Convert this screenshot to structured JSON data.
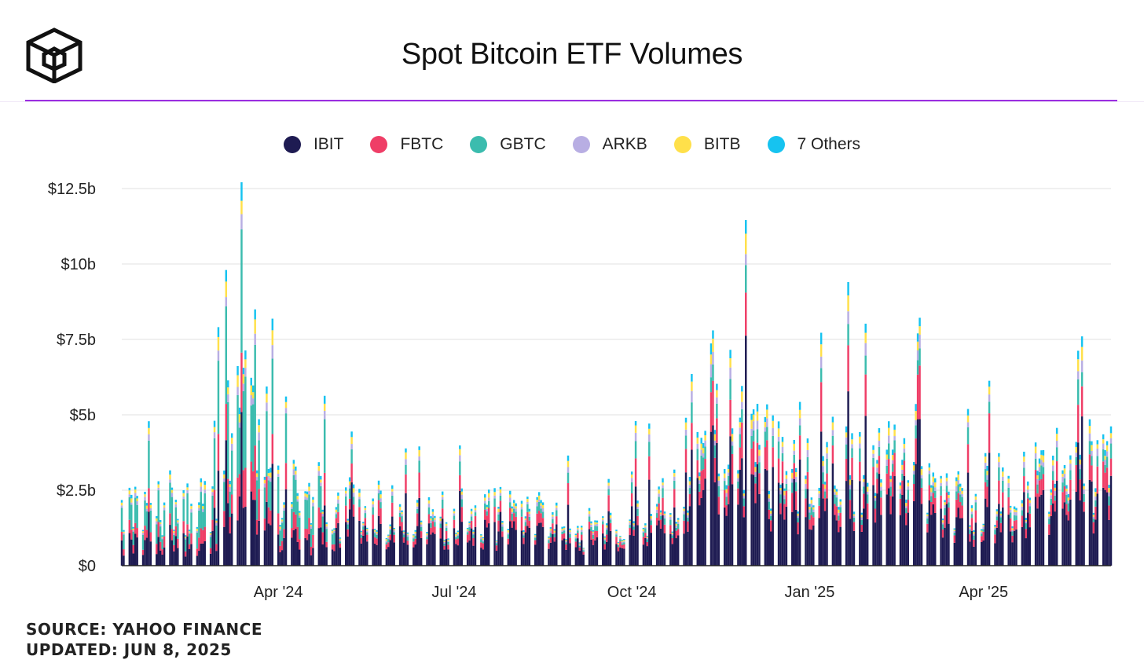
{
  "header": {
    "title": "Spot Bitcoin ETF Volumes"
  },
  "colors": {
    "accent_rule": "#9b2ee0",
    "IBIT": "#1e1b52",
    "FBTC": "#ef3e67",
    "GBTC": "#3bbcae",
    "ARKB": "#b8aee3",
    "BITB": "#ffe04a",
    "Others": "#16c3f0"
  },
  "footer": {
    "source": "SOURCE: YAHOO FINANCE",
    "updated": "UPDATED: JUN 8, 2025"
  },
  "chart_data": {
    "type": "bar",
    "stacked": true,
    "title": "Spot Bitcoin ETF Volumes",
    "xlabel": "",
    "ylabel": "",
    "ylim": [
      0,
      12.5
    ],
    "y_unit": "billion USD",
    "y_ticks": [
      {
        "value": 0,
        "label": "$0"
      },
      {
        "value": 2.5,
        "label": "$2.5b"
      },
      {
        "value": 5,
        "label": "$5b"
      },
      {
        "value": 7.5,
        "label": "$7.5b"
      },
      {
        "value": 10,
        "label": "$10b"
      },
      {
        "value": 12.5,
        "label": "$12.5b"
      }
    ],
    "x_range": [
      "2024-01-11",
      "2025-06-06"
    ],
    "x_ticks": [
      {
        "date": "2024-04-01",
        "label": "Apr '24"
      },
      {
        "date": "2024-07-01",
        "label": "Jul '24"
      },
      {
        "date": "2024-10-01",
        "label": "Oct '24"
      },
      {
        "date": "2025-01-01",
        "label": "Jan '25"
      },
      {
        "date": "2025-04-01",
        "label": "Apr '25"
      }
    ],
    "grid": true,
    "legend_position": "top-center",
    "series_names": [
      "IBIT",
      "FBTC",
      "GBTC",
      "ARKB",
      "BITB",
      "7 Others"
    ],
    "totals_by_month": [
      {
        "month": "2024-01",
        "avg_total": 2.2
      },
      {
        "month": "2024-02",
        "avg_total": 2.2
      },
      {
        "month": "2024-03",
        "avg_total": 5.8
      },
      {
        "month": "2024-04",
        "avg_total": 2.6
      },
      {
        "month": "2024-05",
        "avg_total": 2.0
      },
      {
        "month": "2024-06",
        "avg_total": 1.8
      },
      {
        "month": "2024-07",
        "avg_total": 1.8
      },
      {
        "month": "2024-08",
        "avg_total": 1.7
      },
      {
        "month": "2024-09",
        "avg_total": 1.3
      },
      {
        "month": "2024-10",
        "avg_total": 2.2
      },
      {
        "month": "2024-11",
        "avg_total": 5.2
      },
      {
        "month": "2024-12",
        "avg_total": 3.8
      },
      {
        "month": "2025-01",
        "avg_total": 3.6
      },
      {
        "month": "2025-02",
        "avg_total": 3.7
      },
      {
        "month": "2025-03",
        "avg_total": 2.4
      },
      {
        "month": "2025-04",
        "avg_total": 2.8
      },
      {
        "month": "2025-05",
        "avg_total": 3.3
      },
      {
        "month": "2025-06",
        "avg_total": 3.5
      }
    ],
    "peaks": [
      {
        "date": "2024-03-05",
        "total": 9.8
      },
      {
        "date": "2024-11-12",
        "total": 7.8
      },
      {
        "date": "2025-01-21",
        "total": 9.4
      },
      {
        "date": "2025-02-26",
        "total": 7.7
      },
      {
        "date": "2025-05-22",
        "total": 7.6
      }
    ]
  }
}
